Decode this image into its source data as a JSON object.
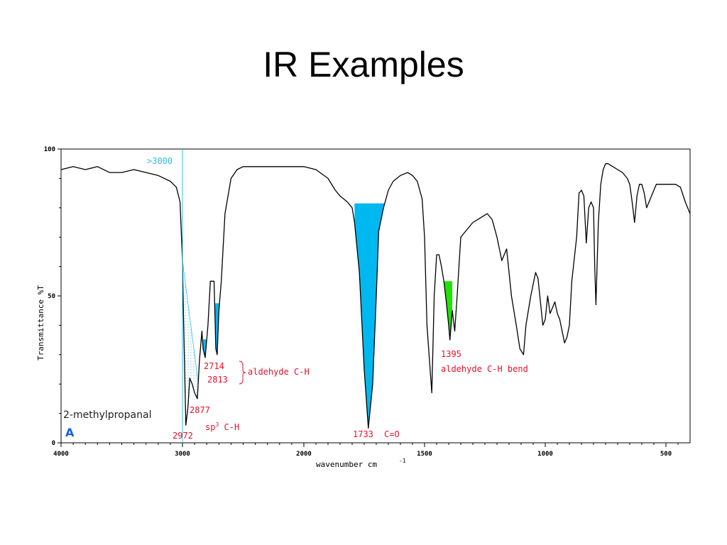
{
  "slide": {
    "title": "IR Examples"
  },
  "colors": {
    "spectrum": "#000000",
    "highlight_cyan": "#00b8f0",
    "highlight_green": "#22e00a",
    "annotation_red": "#e8102a",
    "marker_line": "#33bce0",
    "sample_label_blue": "#1a5ce8"
  },
  "chart_data": {
    "type": "line",
    "compound": "2-methylpropanal",
    "panel_letter": "A",
    "xlabel": "wavenumber cm",
    "xlabel_superscript": "-1",
    "ylabel": "Transmittance %T",
    "xlim": [
      4000,
      400
    ],
    "ylim": [
      0,
      100
    ],
    "x_ticks": [
      "4000",
      "3000",
      "2000",
      "1500",
      "1000",
      "500"
    ],
    "y_ticks": [
      "0",
      "50",
      "100"
    ],
    "grid": false,
    "marker": {
      "wavenumber": 3000,
      "label": ">3000"
    },
    "series": [
      {
        "x": [
          4000,
          3900,
          3800,
          3700,
          3600,
          3500,
          3400,
          3300,
          3200,
          3100,
          3050,
          3020,
          3000,
          2990,
          2972,
          2955,
          2940,
          2920,
          2900,
          2877,
          2860,
          2840,
          2830,
          2813,
          2790,
          2770,
          2740,
          2725,
          2714,
          2700,
          2680,
          2650,
          2600,
          2550,
          2500,
          2400,
          2300,
          2200,
          2100,
          2000,
          1950,
          1900,
          1870,
          1850,
          1820,
          1800,
          1790,
          1770,
          1750,
          1733,
          1715,
          1700,
          1690,
          1670,
          1650,
          1630,
          1600,
          1570,
          1550,
          1530,
          1510,
          1500,
          1490,
          1470,
          1460,
          1450,
          1440,
          1430,
          1420,
          1410,
          1400,
          1395,
          1385,
          1375,
          1365,
          1350,
          1330,
          1310,
          1300,
          1280,
          1260,
          1240,
          1220,
          1200,
          1180,
          1160,
          1140,
          1120,
          1105,
          1090,
          1080,
          1060,
          1050,
          1040,
          1030,
          1020,
          1010,
          1000,
          990,
          980,
          970,
          960,
          950,
          940,
          930,
          920,
          910,
          900,
          890,
          870,
          860,
          850,
          840,
          830,
          820,
          810,
          800,
          795,
          790,
          780,
          770,
          760,
          750,
          740,
          720,
          700,
          680,
          660,
          650,
          640,
          630,
          620,
          610,
          600,
          590,
          580,
          560,
          540,
          520,
          500,
          480,
          460,
          440,
          420,
          400
        ],
        "y": [
          93,
          94,
          93,
          94,
          92,
          92,
          93,
          92,
          91,
          89,
          87,
          82,
          62,
          40,
          6,
          12,
          22,
          20,
          17,
          15,
          28,
          38,
          32,
          29,
          40,
          55,
          55,
          32,
          30,
          45,
          55,
          78,
          90,
          93,
          94,
          94,
          94,
          94,
          94,
          94,
          93,
          90,
          86,
          84,
          82,
          80,
          75,
          58,
          25,
          5,
          20,
          50,
          72,
          80,
          86,
          89,
          91,
          92,
          91,
          89,
          83,
          70,
          40,
          17,
          50,
          64,
          64,
          60,
          55,
          48,
          40,
          35,
          45,
          38,
          50,
          70,
          72,
          74,
          75,
          76,
          77,
          78,
          76,
          70,
          62,
          66,
          50,
          40,
          32,
          30,
          40,
          50,
          54,
          58,
          56,
          48,
          40,
          42,
          50,
          44,
          46,
          48,
          44,
          42,
          38,
          34,
          36,
          40,
          55,
          70,
          85,
          86,
          84,
          68,
          80,
          82,
          80,
          60,
          47,
          75,
          88,
          93,
          95,
          95,
          94,
          93,
          92,
          90,
          88,
          82,
          75,
          84,
          88,
          88,
          85,
          80,
          84,
          88,
          88,
          88,
          88,
          88,
          87,
          82,
          78
        ]
      }
    ],
    "highlights": [
      {
        "color": "cyan",
        "x_from": 1790,
        "x_to": 1665,
        "label": "C=O"
      },
      {
        "color": "cyan",
        "x_from": 2850,
        "x_to": 2800
      },
      {
        "color": "cyan",
        "x_from": 2735,
        "x_to": 2695
      },
      {
        "color": "cyan_dotted",
        "x_from": 3000,
        "x_to": 2870
      },
      {
        "color": "green",
        "x_from": 1420,
        "x_to": 1385
      }
    ],
    "annotations": [
      {
        "id": "a2972",
        "text": "2972"
      },
      {
        "id": "a2877",
        "text": "2877"
      },
      {
        "id": "asp3",
        "text": "sp",
        "sup": "3",
        "rest": " C-H"
      },
      {
        "id": "a2714",
        "text": "2714"
      },
      {
        "id": "a2813",
        "text": "2813"
      },
      {
        "id": "aald",
        "text": "aldehyde C-H"
      },
      {
        "id": "a1733",
        "text": "1733"
      },
      {
        "id": "aco",
        "text": "C=O"
      },
      {
        "id": "a1395",
        "text": "1395"
      },
      {
        "id": "abend",
        "text": "aldehyde C-H bend"
      }
    ]
  }
}
